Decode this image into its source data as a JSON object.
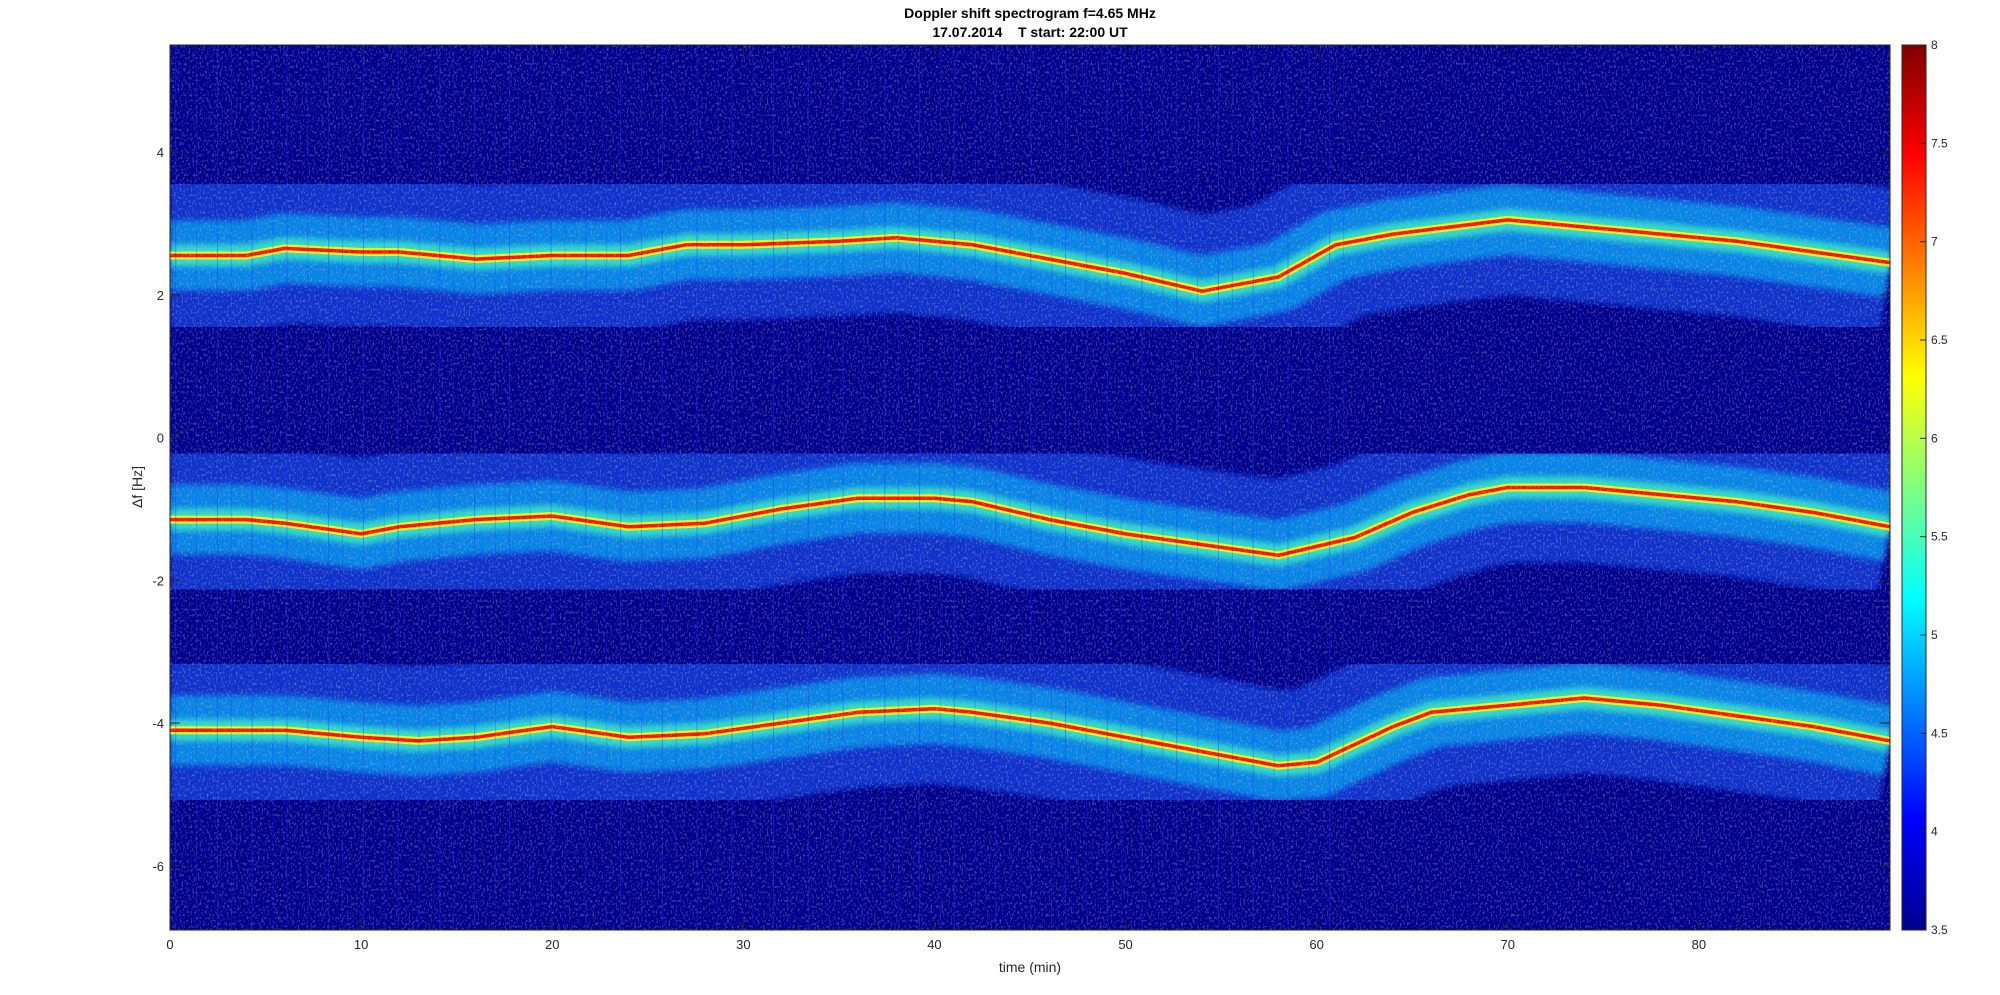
{
  "chart_data": {
    "type": "heatmap",
    "title": "Doppler shift spectrogram f=4.65 MHz",
    "subtitle": "17.07.2014    T start: 22:00 UT",
    "xlabel": "time (min)",
    "ylabel": "Δf [Hz]",
    "xlim": [
      0,
      90
    ],
    "ylim": [
      -6.9,
      5.5
    ],
    "x_ticks": [
      0,
      10,
      20,
      30,
      40,
      50,
      60,
      70,
      80
    ],
    "y_ticks": [
      -6,
      -4,
      -2,
      0,
      2,
      4
    ],
    "colormap": "jet",
    "background_color": "#00008f",
    "colorbar": {
      "range": [
        3.5,
        8
      ],
      "ticks": [
        3.5,
        4,
        4.5,
        5,
        5.5,
        6,
        6.5,
        7,
        7.5,
        8
      ]
    },
    "series": [
      {
        "x": [
          0,
          4,
          6,
          10,
          12,
          16,
          20,
          24,
          27,
          30,
          35,
          38,
          42,
          46,
          50,
          54,
          58,
          61,
          64,
          67,
          70,
          72,
          74,
          78,
          82,
          86,
          90
        ],
        "y": [
          2.55,
          2.55,
          2.65,
          2.6,
          2.6,
          2.5,
          2.55,
          2.55,
          2.7,
          2.7,
          2.75,
          2.8,
          2.7,
          2.5,
          2.3,
          2.05,
          2.25,
          2.7,
          2.85,
          2.95,
          3.05,
          3.0,
          2.95,
          2.85,
          2.75,
          2.6,
          2.45
        ]
      },
      {
        "x": [
          0,
          4,
          6,
          10,
          12,
          16,
          20,
          24,
          28,
          32,
          36,
          40,
          42,
          46,
          50,
          54,
          58,
          62,
          65,
          68,
          70,
          74,
          78,
          82,
          86,
          90
        ],
        "y": [
          -1.15,
          -1.15,
          -1.2,
          -1.35,
          -1.25,
          -1.15,
          -1.1,
          -1.25,
          -1.2,
          -1.0,
          -0.85,
          -0.85,
          -0.9,
          -1.15,
          -1.35,
          -1.5,
          -1.65,
          -1.4,
          -1.05,
          -0.8,
          -0.7,
          -0.7,
          -0.8,
          -0.9,
          -1.05,
          -1.25
        ]
      },
      {
        "x": [
          0,
          4,
          6,
          10,
          13,
          16,
          20,
          24,
          28,
          32,
          36,
          40,
          42,
          46,
          50,
          54,
          58,
          60,
          62,
          64,
          66,
          70,
          74,
          78,
          82,
          86,
          90
        ],
        "y": [
          -4.1,
          -4.1,
          -4.1,
          -4.2,
          -4.25,
          -4.2,
          -4.05,
          -4.2,
          -4.15,
          -4.0,
          -3.85,
          -3.8,
          -3.85,
          -4.0,
          -4.2,
          -4.4,
          -4.6,
          -4.55,
          -4.3,
          -4.05,
          -3.85,
          -3.75,
          -3.65,
          -3.75,
          -3.9,
          -4.05,
          -4.25
        ]
      }
    ]
  }
}
